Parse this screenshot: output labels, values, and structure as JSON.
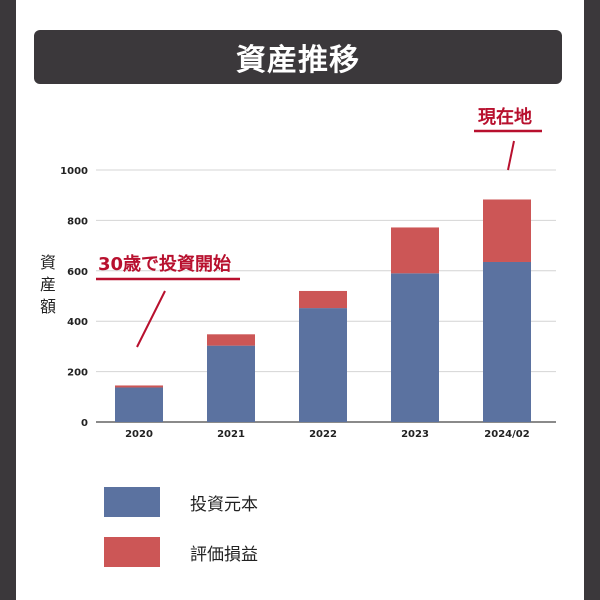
{
  "title": "資産推移",
  "chart_data": {
    "type": "bar",
    "stacked": true,
    "categories": [
      "2020",
      "2021",
      "2022",
      "2023",
      "2024/02"
    ],
    "series": [
      {
        "name": "投資元本",
        "color": "#5b72a0",
        "values": [
          137,
          303,
          452,
          590,
          635
        ]
      },
      {
        "name": "評価損益",
        "color": "#cc5656",
        "values": [
          8,
          45,
          68,
          182,
          248
        ]
      }
    ],
    "ylabel": "資産額",
    "ylim": [
      0,
      1000
    ],
    "yticks": [
      0,
      200,
      400,
      600,
      800,
      1000
    ],
    "grid": true,
    "annotations": [
      {
        "text": "30歳で投資開始",
        "category": "2020"
      },
      {
        "text": "現在地",
        "category": "2024/02"
      }
    ]
  }
}
